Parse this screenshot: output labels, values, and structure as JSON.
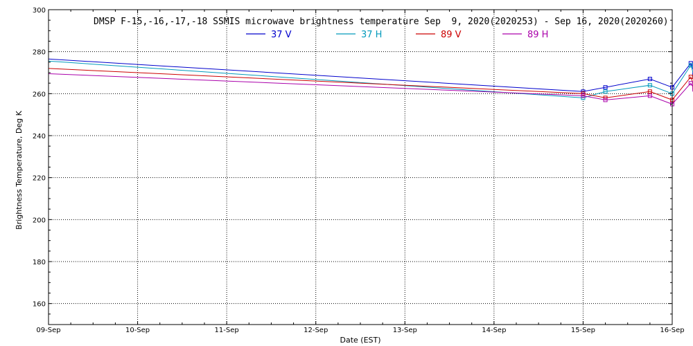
{
  "chart_data": {
    "type": "line",
    "title": "DMSP F-15,-16,-17,-18 SSMIS microwave brightness temperature Sep  9, 2020(2020253) - Sep 16, 2020(2020260)",
    "xlabel": "Date (EST)",
    "ylabel": "Brightness Temperature, Deg K",
    "xlim": [
      "2020-09-09",
      "2020-09-16"
    ],
    "ylim": [
      150,
      300
    ],
    "x_ticks": [
      "09-Sep",
      "10-Sep",
      "11-Sep",
      "12-Sep",
      "13-Sep",
      "14-Sep",
      "15-Sep",
      "16-Sep"
    ],
    "y_ticks": [
      160,
      180,
      200,
      220,
      240,
      260,
      280,
      300
    ],
    "grid": true,
    "legend_position": "top",
    "series": [
      {
        "name": "37 V",
        "color": "#0000cc",
        "x": [
          "2020-09-09 00:00",
          "2020-09-15 00:00",
          "2020-09-15 06:00",
          "2020-09-15 18:00",
          "2020-09-16 00:00",
          "2020-09-16 05:00",
          "2020-09-16 06:00"
        ],
        "y": [
          276.5,
          261,
          263,
          267,
          263,
          274.5,
          270
        ],
        "markers": [
          false,
          true,
          true,
          true,
          true,
          true,
          true
        ]
      },
      {
        "name": "37 H",
        "color": "#0099bb",
        "x": [
          "2020-09-09 00:00",
          "2020-09-15 00:00",
          "2020-09-15 06:00",
          "2020-09-15 18:00",
          "2020-09-16 00:00",
          "2020-09-16 05:00",
          "2020-09-16 06:00"
        ],
        "y": [
          275.5,
          258,
          261,
          264,
          260,
          273.5,
          268
        ],
        "markers": [
          false,
          true,
          true,
          true,
          true,
          true,
          true
        ]
      },
      {
        "name": "89 V",
        "color": "#cc0000",
        "x": [
          "2020-09-09 00:00",
          "2020-09-15 00:00",
          "2020-09-15 06:00",
          "2020-09-15 18:00",
          "2020-09-16 00:00",
          "2020-09-16 05:00",
          "2020-09-16 06:00"
        ],
        "y": [
          272,
          260,
          258,
          261,
          257,
          268,
          263
        ],
        "markers": [
          false,
          true,
          true,
          true,
          true,
          true,
          true
        ]
      },
      {
        "name": "89 H",
        "color": "#aa00aa",
        "x": [
          "2020-09-09 00:00",
          "2020-09-15 00:00",
          "2020-09-15 06:00",
          "2020-09-15 18:00",
          "2020-09-16 00:00",
          "2020-09-16 05:00",
          "2020-09-16 06:00"
        ],
        "y": [
          269.5,
          259,
          257,
          259,
          255,
          265,
          262
        ],
        "markers": [
          false,
          true,
          true,
          true,
          true,
          true,
          true
        ]
      }
    ]
  }
}
